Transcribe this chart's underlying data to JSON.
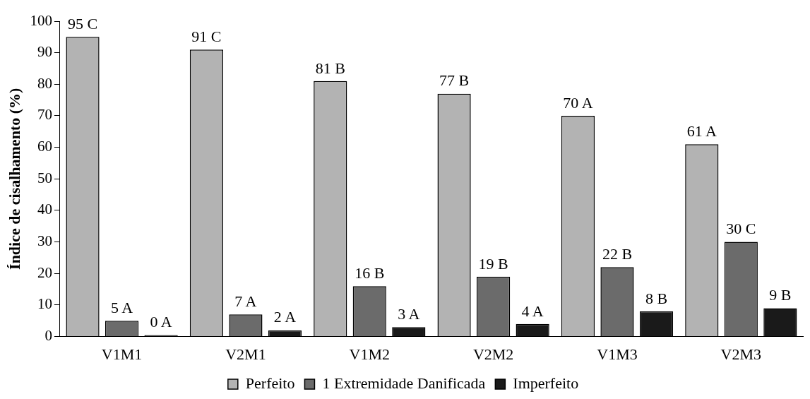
{
  "chart_data": {
    "type": "bar",
    "ylabel": "Índice de cisalhamento (%)",
    "categories": [
      "V1M1",
      "V2M1",
      "V1M2",
      "V2M2",
      "V1M3",
      "V2M3"
    ],
    "series": [
      {
        "name": "Perfeito",
        "color": "#b3b3b3",
        "values": [
          95,
          91,
          81,
          77,
          70,
          61
        ],
        "value_labels": [
          "95 C",
          "91 C",
          "81 B",
          "77 B",
          "70 A",
          "61 A"
        ]
      },
      {
        "name": "1 Extremidade Danificada",
        "color": "#6b6b6b",
        "values": [
          5,
          7,
          16,
          19,
          22,
          30
        ],
        "value_labels": [
          "5 A",
          "7 A",
          "16 B",
          "19 B",
          "22 B",
          "30 C"
        ]
      },
      {
        "name": "Imperfeito",
        "color": "#1a1a1a",
        "values": [
          0,
          2,
          3,
          4,
          8,
          9
        ],
        "value_labels": [
          "0 A",
          "2 A",
          "3 A",
          "4 A",
          "8 B",
          "9 B"
        ]
      }
    ],
    "ylim": [
      0,
      100
    ],
    "yticks": [
      0,
      10,
      20,
      30,
      40,
      50,
      60,
      70,
      80,
      90,
      100
    ],
    "grid": false,
    "legend": "bottom"
  }
}
